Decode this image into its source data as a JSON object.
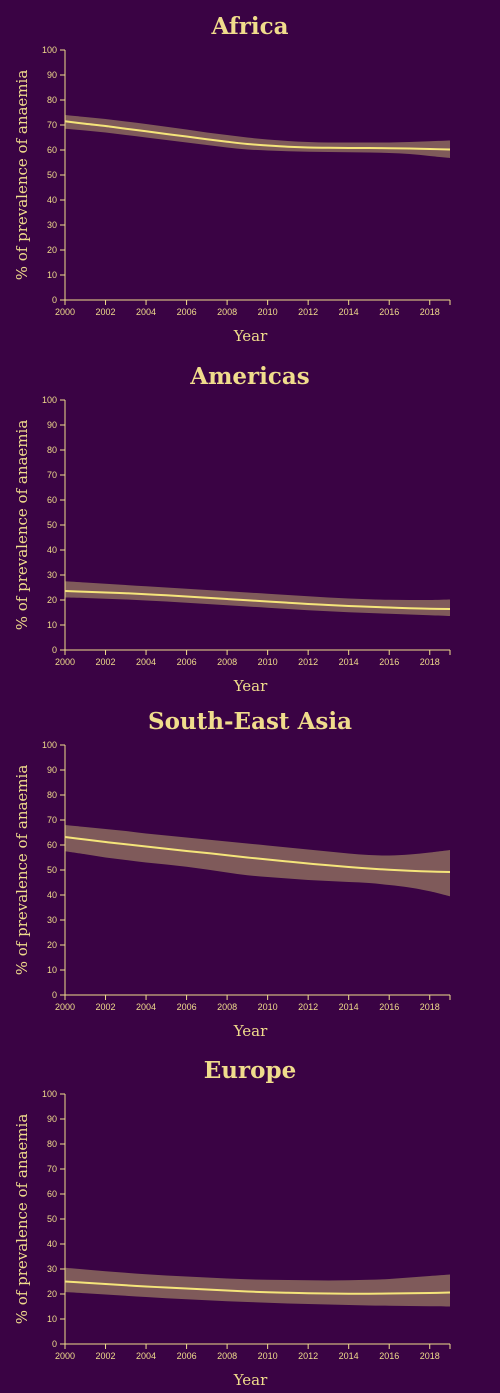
{
  "colors": {
    "background": "#3a0344",
    "text": "#f0dc8c",
    "band": "#7f5a5a",
    "line": "#f5e57a"
  },
  "chart_data": [
    {
      "type": "line",
      "title": "Africa",
      "xlabel": "Year",
      "ylabel": "% of prevalence of anaemia",
      "xlim": [
        2000,
        2019
      ],
      "ylim": [
        0,
        100
      ],
      "xticks": [
        2000,
        2002,
        2004,
        2006,
        2008,
        2010,
        2012,
        2014,
        2016,
        2018
      ],
      "yticks": [
        0,
        10,
        20,
        30,
        40,
        50,
        60,
        70,
        80,
        90,
        100
      ],
      "x": [
        2000,
        2001,
        2002,
        2003,
        2004,
        2005,
        2006,
        2007,
        2008,
        2009,
        2010,
        2011,
        2012,
        2013,
        2014,
        2015,
        2016,
        2017,
        2018,
        2019
      ],
      "series": [
        {
          "values": [
            71.5,
            70.5,
            69.6,
            68.5,
            67.5,
            66.4,
            65.4,
            64.3,
            63.3,
            62.4,
            61.8,
            61.3,
            61.0,
            60.9,
            60.8,
            60.8,
            60.7,
            60.6,
            60.4,
            60.2
          ],
          "lower": [
            68.5,
            67.8,
            67.0,
            66.0,
            65.0,
            64.0,
            63.0,
            62.0,
            61.0,
            60.2,
            59.8,
            59.5,
            59.3,
            59.2,
            59.1,
            59.0,
            58.8,
            58.4,
            57.6,
            56.8
          ],
          "upper": [
            74.0,
            73.2,
            72.4,
            71.4,
            70.4,
            69.3,
            68.2,
            67.0,
            66.0,
            65.0,
            64.2,
            63.6,
            63.2,
            63.0,
            63.0,
            63.0,
            63.0,
            63.2,
            63.5,
            63.8
          ]
        }
      ]
    },
    {
      "type": "line",
      "title": "Americas",
      "xlabel": "Year",
      "ylabel": "% of prevalence of anaemia",
      "xlim": [
        2000,
        2019
      ],
      "ylim": [
        0,
        100
      ],
      "xticks": [
        2000,
        2002,
        2004,
        2006,
        2008,
        2010,
        2012,
        2014,
        2016,
        2018
      ],
      "yticks": [
        0,
        10,
        20,
        30,
        40,
        50,
        60,
        70,
        80,
        90,
        100
      ],
      "x": [
        2000,
        2001,
        2002,
        2003,
        2004,
        2005,
        2006,
        2007,
        2008,
        2009,
        2010,
        2011,
        2012,
        2013,
        2014,
        2015,
        2016,
        2017,
        2018,
        2019
      ],
      "series": [
        {
          "values": [
            23.6,
            23.3,
            23.0,
            22.7,
            22.3,
            21.9,
            21.4,
            20.9,
            20.4,
            19.9,
            19.4,
            18.9,
            18.4,
            18.0,
            17.6,
            17.3,
            17.0,
            16.7,
            16.5,
            16.4
          ],
          "lower": [
            21.0,
            20.8,
            20.5,
            20.2,
            19.8,
            19.4,
            18.9,
            18.4,
            17.9,
            17.4,
            16.9,
            16.4,
            15.9,
            15.5,
            15.1,
            14.8,
            14.5,
            14.2,
            13.9,
            13.6
          ],
          "upper": [
            27.5,
            27.0,
            26.5,
            26.0,
            25.5,
            25.0,
            24.5,
            24.0,
            23.5,
            23.0,
            22.5,
            22.0,
            21.5,
            21.0,
            20.6,
            20.3,
            20.1,
            20.0,
            20.0,
            20.2
          ]
        }
      ]
    },
    {
      "type": "line",
      "title": "South-East Asia",
      "xlabel": "Year",
      "ylabel": "% of prevalence of anaemia",
      "xlim": [
        2000,
        2019
      ],
      "ylim": [
        0,
        100
      ],
      "xticks": [
        2000,
        2002,
        2004,
        2006,
        2008,
        2010,
        2012,
        2014,
        2016,
        2018
      ],
      "yticks": [
        0,
        10,
        20,
        30,
        40,
        50,
        60,
        70,
        80,
        90,
        100
      ],
      "x": [
        2000,
        2001,
        2002,
        2003,
        2004,
        2005,
        2006,
        2007,
        2008,
        2009,
        2010,
        2011,
        2012,
        2013,
        2014,
        2015,
        2016,
        2017,
        2018,
        2019
      ],
      "series": [
        {
          "values": [
            63.2,
            62.2,
            61.2,
            60.3,
            59.4,
            58.5,
            57.6,
            56.8,
            55.9,
            55.0,
            54.2,
            53.4,
            52.6,
            51.9,
            51.2,
            50.6,
            50.1,
            49.7,
            49.4,
            49.2
          ],
          "lower": [
            57.5,
            56.3,
            55.0,
            54.0,
            53.0,
            52.2,
            51.3,
            50.2,
            49.0,
            47.9,
            47.2,
            46.6,
            46.0,
            45.6,
            45.2,
            44.8,
            44.0,
            43.0,
            41.5,
            39.5
          ],
          "upper": [
            68.0,
            67.2,
            66.4,
            65.6,
            64.6,
            63.8,
            63.0,
            62.2,
            61.4,
            60.6,
            59.8,
            59.0,
            58.2,
            57.4,
            56.6,
            56.0,
            55.8,
            56.2,
            57.0,
            58.0
          ]
        }
      ]
    },
    {
      "type": "line",
      "title": "Europe",
      "xlabel": "Year",
      "ylabel": "% of prevalence of anaemia",
      "xlim": [
        2000,
        2019
      ],
      "ylim": [
        0,
        100
      ],
      "xticks": [
        2000,
        2002,
        2004,
        2006,
        2008,
        2010,
        2012,
        2014,
        2016,
        2018
      ],
      "yticks": [
        0,
        10,
        20,
        30,
        40,
        50,
        60,
        70,
        80,
        90,
        100
      ],
      "x": [
        2000,
        2001,
        2002,
        2003,
        2004,
        2005,
        2006,
        2007,
        2008,
        2009,
        2010,
        2011,
        2012,
        2013,
        2014,
        2015,
        2016,
        2017,
        2018,
        2019
      ],
      "series": [
        {
          "values": [
            25.0,
            24.5,
            24.0,
            23.5,
            23.0,
            22.6,
            22.2,
            21.8,
            21.4,
            21.0,
            20.7,
            20.5,
            20.3,
            20.2,
            20.1,
            20.1,
            20.2,
            20.3,
            20.4,
            20.6
          ],
          "lower": [
            20.8,
            20.3,
            19.8,
            19.3,
            18.8,
            18.3,
            17.9,
            17.5,
            17.1,
            16.8,
            16.5,
            16.2,
            16.0,
            15.8,
            15.6,
            15.4,
            15.3,
            15.2,
            15.1,
            15.0
          ],
          "upper": [
            30.5,
            29.8,
            29.1,
            28.5,
            27.9,
            27.4,
            27.0,
            26.6,
            26.2,
            25.9,
            25.7,
            25.6,
            25.5,
            25.4,
            25.5,
            25.7,
            26.0,
            26.6,
            27.2,
            27.8
          ]
        }
      ]
    }
  ]
}
